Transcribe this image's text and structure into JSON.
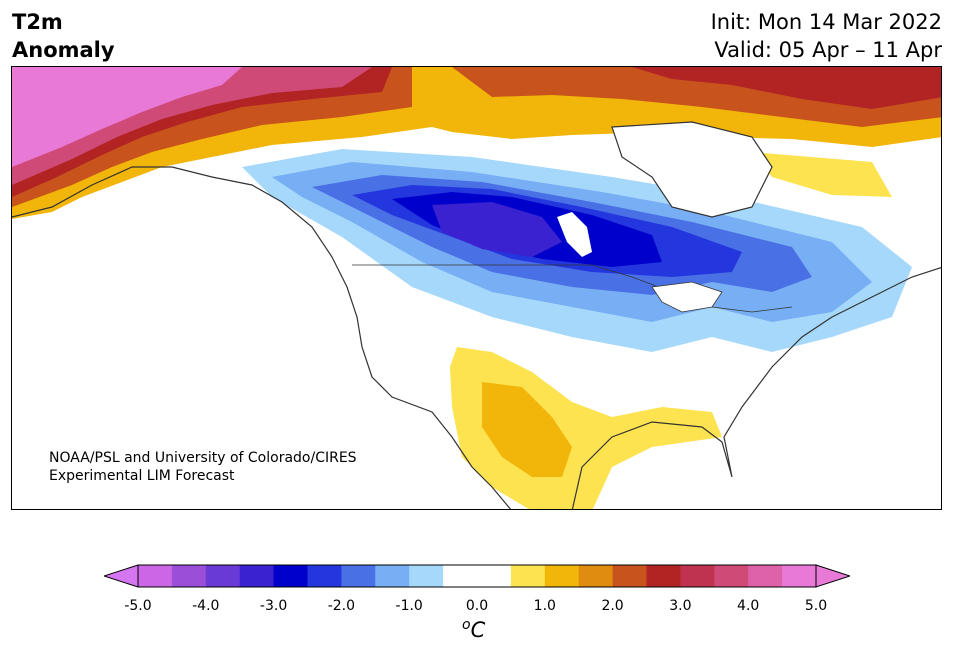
{
  "title": {
    "line1": "T2m",
    "line2": "Anomaly"
  },
  "dates": {
    "init": "Init: Mon 14 Mar 2022",
    "valid": "Valid: 05 Apr – 11 Apr"
  },
  "credit": {
    "line1": "NOAA/PSL and University of Colorado/CIRES",
    "line2": "Experimental LIM Forecast"
  },
  "colorbar": {
    "ticks": [
      "-5.0",
      "-4.0",
      "-3.0",
      "-2.0",
      "-1.0",
      "0.0",
      "1.0",
      "2.0",
      "3.0",
      "4.0",
      "5.0"
    ],
    "unit_main": "C",
    "unit_sup": "o",
    "colors": [
      "#cc66e6",
      "#9b4fd8",
      "#6a3ad6",
      "#3a22d0",
      "#0000cc",
      "#2436dd",
      "#4a70e6",
      "#78aef3",
      "#a6d8fb",
      "#ffffff",
      "#ffffff",
      "#fde350",
      "#f2b50a",
      "#e08c0e",
      "#c8531c",
      "#b22424",
      "#c03350",
      "#d04a78",
      "#dd62aa",
      "#e879d6"
    ],
    "extend_low": "#d575ef",
    "extend_high": "#e879d6"
  }
}
